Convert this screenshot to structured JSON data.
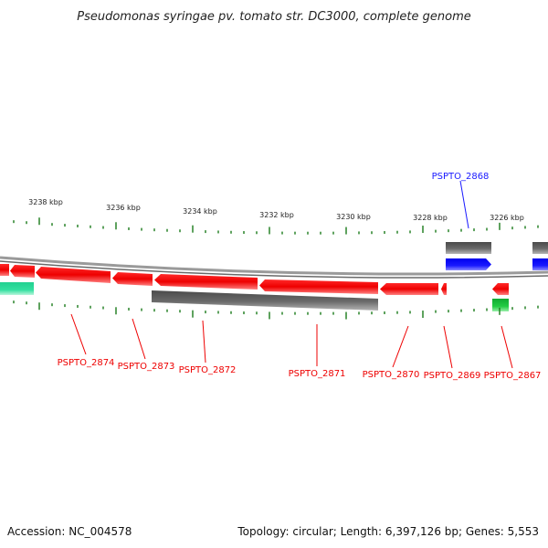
{
  "header": {
    "title": "Pseudomonas syringae pv. tomato str. DC3000, complete genome"
  },
  "footer": {
    "accession": "Accession: NC_004578",
    "summary": "Topology: circular; Length: 6,397,126 bp; Genes: 5,553"
  },
  "colors": {
    "forward_gene": "#1a1aff",
    "reverse_gene": "#ff0000",
    "feature_gray": "#666666",
    "rna_green": "#22cc44",
    "teal_feature": "#33e0a0",
    "tick": "#1a7a1a",
    "backbone": "#888888"
  },
  "scale": {
    "labels": [
      "3238 kbp",
      "3236 kbp",
      "3234 kbp",
      "3232 kbp",
      "3230 kbp",
      "3228 kbp",
      "3226 kbp"
    ]
  },
  "gene_labels": {
    "forward": [
      "PSPTO_2868"
    ],
    "reverse": [
      "PSPTO_2874",
      "PSPTO_2873",
      "PSPTO_2872",
      "PSPTO_2871",
      "PSPTO_2870",
      "PSPTO_2869",
      "PSPTO_2867"
    ]
  }
}
